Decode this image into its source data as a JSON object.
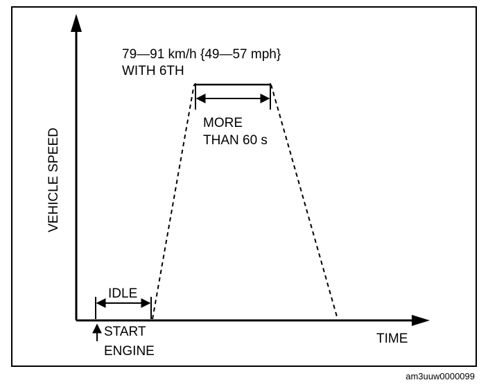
{
  "labels": {
    "y_axis": "VEHICLE SPEED",
    "x_axis": "TIME",
    "speed_line1": "79—91 km/h {49—57 mph}",
    "speed_line2": "WITH 6TH",
    "duration_line1": "MORE",
    "duration_line2": "THAN 60 s",
    "idle": "IDLE",
    "start_line1": "START",
    "start_line2": "ENGINE"
  },
  "figure_code": "am3uuw0000099",
  "colors": {
    "ink": "#000000",
    "background": "#ffffff"
  }
}
